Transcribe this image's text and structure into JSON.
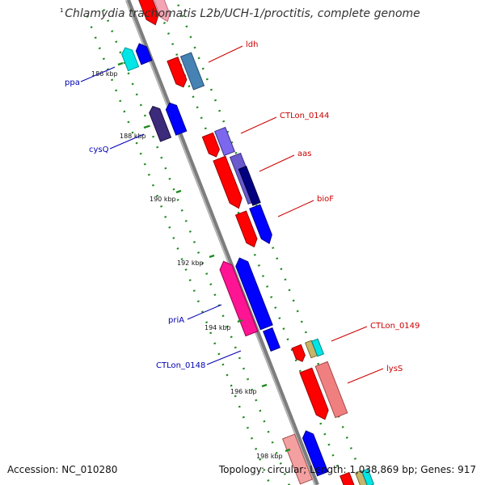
{
  "title": "Chlamydia trachomatis L2b/UCH-1/proctitis, complete genome",
  "accession": "Accession: NC_010280",
  "topology": "Topology: circular; Length: 1,038,869 bp; Genes: 917",
  "corner_label": "1",
  "colors": {
    "backbone": "#8c8c8c",
    "tick": "#1f8a1f",
    "label_forward": "#cc0000",
    "label_reverse": "#0000b3"
  },
  "ticks": [
    "186 kbp",
    "188 kbp",
    "190 kbp",
    "192 kbp",
    "194 kbp",
    "196 kbp",
    "198 kbp"
  ],
  "gene_labels": [
    {
      "name": "ldh",
      "strand": "forward"
    },
    {
      "name": "CTLon_0144",
      "strand": "forward"
    },
    {
      "name": "aas",
      "strand": "forward"
    },
    {
      "name": "bioF",
      "strand": "forward"
    },
    {
      "name": "CTLon_0149",
      "strand": "forward"
    },
    {
      "name": "lysS",
      "strand": "forward"
    },
    {
      "name": "ppa",
      "strand": "reverse"
    },
    {
      "name": "cysQ",
      "strand": "reverse"
    },
    {
      "name": "priA",
      "strand": "reverse"
    },
    {
      "name": "CTLon_0148",
      "strand": "reverse"
    }
  ]
}
